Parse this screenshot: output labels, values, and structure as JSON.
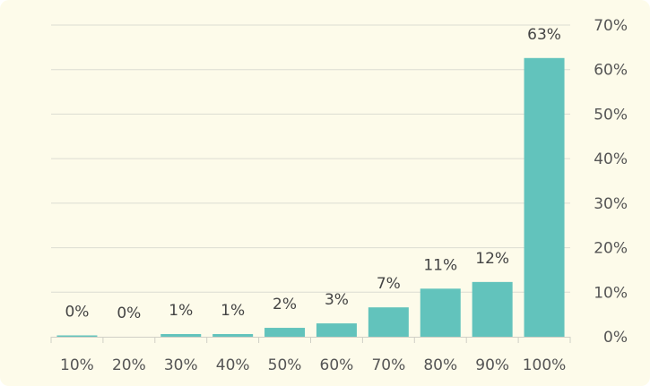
{
  "chart_data": {
    "type": "bar",
    "categories": [
      "10%",
      "20%",
      "30%",
      "40%",
      "50%",
      "60%",
      "70%",
      "80%",
      "90%",
      "100%"
    ],
    "values": [
      0.3,
      0,
      0.6,
      0.6,
      2.0,
      3.0,
      6.6,
      10.8,
      12.3,
      62.6
    ],
    "data_labels": [
      "0%",
      "0%",
      "1%",
      "1%",
      "2%",
      "3%",
      "7%",
      "11%",
      "12%",
      "63%"
    ],
    "y_ticks": [
      "0%",
      "10%",
      "20%",
      "30%",
      "40%",
      "50%",
      "60%",
      "70%"
    ],
    "ylim": [
      0,
      70
    ],
    "y_axis_position": "right",
    "grid": true,
    "title": "",
    "xlabel": "",
    "ylabel": "",
    "colors": {
      "bar": "#62c3bc",
      "background": "#fdfbea",
      "grid": "#dcdcd2",
      "axis": "#d0d0c6",
      "text": "#555555"
    }
  }
}
